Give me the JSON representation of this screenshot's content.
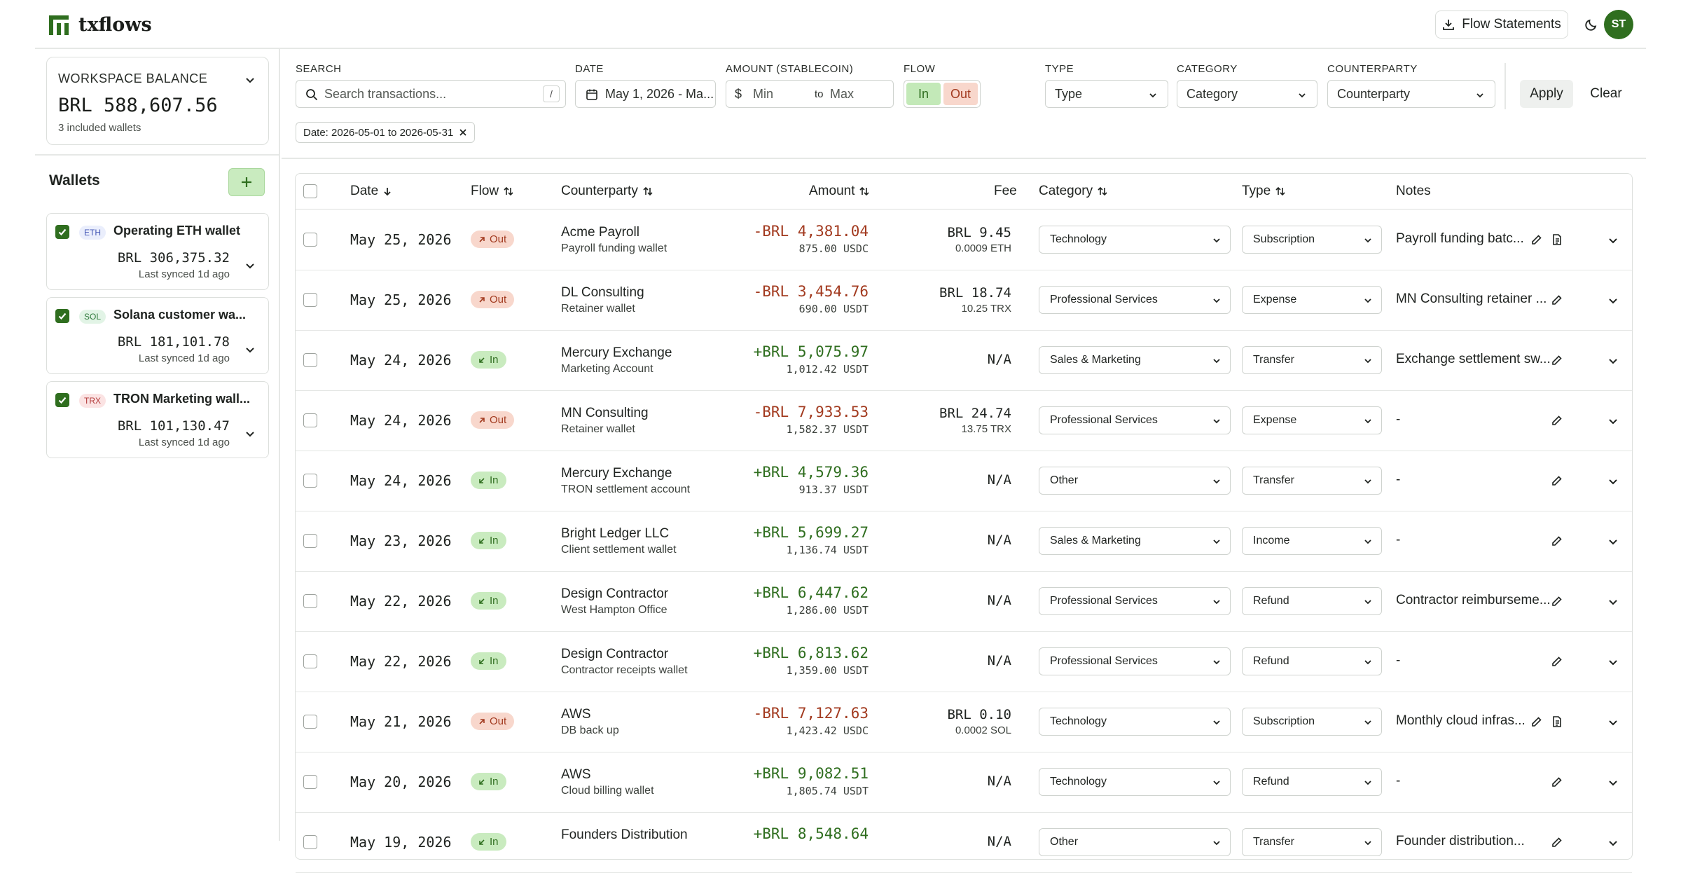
{
  "app": {
    "name": "txflows",
    "avatar_initials": "ST",
    "flow_statements_label": "Flow Statements"
  },
  "workspace": {
    "label": "WORKSPACE BALANCE",
    "balance": "BRL 588,607.56",
    "sub": "3 included wallets"
  },
  "wallets": {
    "title": "Wallets",
    "items": [
      {
        "chain": "ETH",
        "name": "Operating ETH wallet",
        "balance": "BRL 306,375.32",
        "synced": "Last synced 1d ago",
        "badge_bg": "#eaeefc",
        "badge_fg": "#4457b5"
      },
      {
        "chain": "SOL",
        "name": "Solana customer wa...",
        "balance": "BRL 181,101.78",
        "synced": "Last synced 1d ago",
        "badge_bg": "#e2f4e6",
        "badge_fg": "#2f7a3c"
      },
      {
        "chain": "TRX",
        "name": "TRON Marketing wall...",
        "balance": "BRL 101,130.47",
        "synced": "Last synced 1d ago",
        "badge_bg": "#fbe3e3",
        "badge_fg": "#b23a3a"
      }
    ]
  },
  "filters": {
    "search": {
      "label": "SEARCH",
      "placeholder": "Search transactions...",
      "shortcut": "/"
    },
    "date": {
      "label": "DATE",
      "value": "May 1, 2026 - Ma..."
    },
    "amount": {
      "label": "AMOUNT (STABLECOIN)",
      "currency": "$",
      "min": "Min",
      "to": "to",
      "max": "Max"
    },
    "flow": {
      "label": "FLOW",
      "in": "In",
      "out": "Out"
    },
    "type": {
      "label": "TYPE",
      "value": "Type"
    },
    "category": {
      "label": "CATEGORY",
      "value": "Category"
    },
    "counterparty": {
      "label": "COUNTERPARTY",
      "value": "Counterparty"
    },
    "apply": "Apply",
    "clear": "Clear",
    "chip": "Date: 2026-05-01 to 2026-05-31"
  },
  "table": {
    "headers": {
      "date": "Date",
      "flow": "Flow",
      "counterparty": "Counterparty",
      "amount": "Amount",
      "fee": "Fee",
      "category": "Category",
      "type": "Type",
      "notes": "Notes"
    },
    "rows": [
      {
        "date": "May 25, 2026",
        "flow": "Out",
        "cp": "Acme Payroll",
        "cp_sub": "Payroll funding wallet",
        "amount": "-BRL 4,381.04",
        "amount_sub": "875.00 USDC",
        "fee": "BRL 9.45",
        "fee_sub": "0.0009 ETH",
        "category": "Technology",
        "type": "Subscription",
        "note": "Payroll funding batc...",
        "has_doc": true
      },
      {
        "date": "May 25, 2026",
        "flow": "Out",
        "cp": "DL Consulting",
        "cp_sub": "Retainer wallet",
        "amount": "-BRL 3,454.76",
        "amount_sub": "690.00 USDT",
        "fee": "BRL 18.74",
        "fee_sub": "10.25 TRX",
        "category": "Professional Services",
        "type": "Expense",
        "note": "MN Consulting retainer ...",
        "has_doc": false
      },
      {
        "date": "May 24, 2026",
        "flow": "In",
        "cp": "Mercury Exchange",
        "cp_sub": "Marketing Account",
        "amount": "+BRL 5,075.97",
        "amount_sub": "1,012.42 USDT",
        "fee": "N/A",
        "fee_sub": "",
        "category": "Sales & Marketing",
        "type": "Transfer",
        "note": "Exchange settlement sw...",
        "has_doc": false
      },
      {
        "date": "May 24, 2026",
        "flow": "Out",
        "cp": "MN Consulting",
        "cp_sub": "Retainer wallet",
        "amount": "-BRL 7,933.53",
        "amount_sub": "1,582.37 USDT",
        "fee": "BRL 24.74",
        "fee_sub": "13.75 TRX",
        "category": "Professional Services",
        "type": "Expense",
        "note": "-",
        "has_doc": false
      },
      {
        "date": "May 24, 2026",
        "flow": "In",
        "cp": "Mercury Exchange",
        "cp_sub": "TRON settlement account",
        "amount": "+BRL 4,579.36",
        "amount_sub": "913.37 USDT",
        "fee": "N/A",
        "fee_sub": "",
        "category": "Other",
        "type": "Transfer",
        "note": "-",
        "has_doc": false
      },
      {
        "date": "May 23, 2026",
        "flow": "In",
        "cp": "Bright Ledger LLC",
        "cp_sub": "Client settlement wallet",
        "amount": "+BRL 5,699.27",
        "amount_sub": "1,136.74 USDT",
        "fee": "N/A",
        "fee_sub": "",
        "category": "Sales & Marketing",
        "type": "Income",
        "note": "-",
        "has_doc": false
      },
      {
        "date": "May 22, 2026",
        "flow": "In",
        "cp": "Design Contractor",
        "cp_sub": "West Hampton Office",
        "amount": "+BRL 6,447.62",
        "amount_sub": "1,286.00 USDT",
        "fee": "N/A",
        "fee_sub": "",
        "category": "Professional Services",
        "type": "Refund",
        "note": "Contractor reimburseme...",
        "has_doc": false
      },
      {
        "date": "May 22, 2026",
        "flow": "In",
        "cp": "Design Contractor",
        "cp_sub": "Contractor receipts wallet",
        "amount": "+BRL 6,813.62",
        "amount_sub": "1,359.00 USDT",
        "fee": "N/A",
        "fee_sub": "",
        "category": "Professional Services",
        "type": "Refund",
        "note": "-",
        "has_doc": false
      },
      {
        "date": "May 21, 2026",
        "flow": "Out",
        "cp": "AWS",
        "cp_sub": "DB back up",
        "amount": "-BRL 7,127.63",
        "amount_sub": "1,423.42 USDC",
        "fee": "BRL 0.10",
        "fee_sub": "0.0002 SOL",
        "category": "Technology",
        "type": "Subscription",
        "note": "Monthly cloud infras...",
        "has_doc": true
      },
      {
        "date": "May 20, 2026",
        "flow": "In",
        "cp": "AWS",
        "cp_sub": "Cloud billing wallet",
        "amount": "+BRL 9,082.51",
        "amount_sub": "1,805.74 USDT",
        "fee": "N/A",
        "fee_sub": "",
        "category": "Technology",
        "type": "Refund",
        "note": "-",
        "has_doc": false
      },
      {
        "date": "May 19, 2026",
        "flow": "In",
        "cp": "Founders Distribution",
        "cp_sub": "",
        "amount": "+BRL 8,548.64",
        "amount_sub": "",
        "fee": "N/A",
        "fee_sub": "",
        "category": "Other",
        "type": "Transfer",
        "note": "Founder distribution...",
        "has_doc": false
      }
    ]
  },
  "colors": {
    "brand": "#2f6e1f",
    "out": "#a23a1f",
    "in": "#2f6e1f"
  }
}
